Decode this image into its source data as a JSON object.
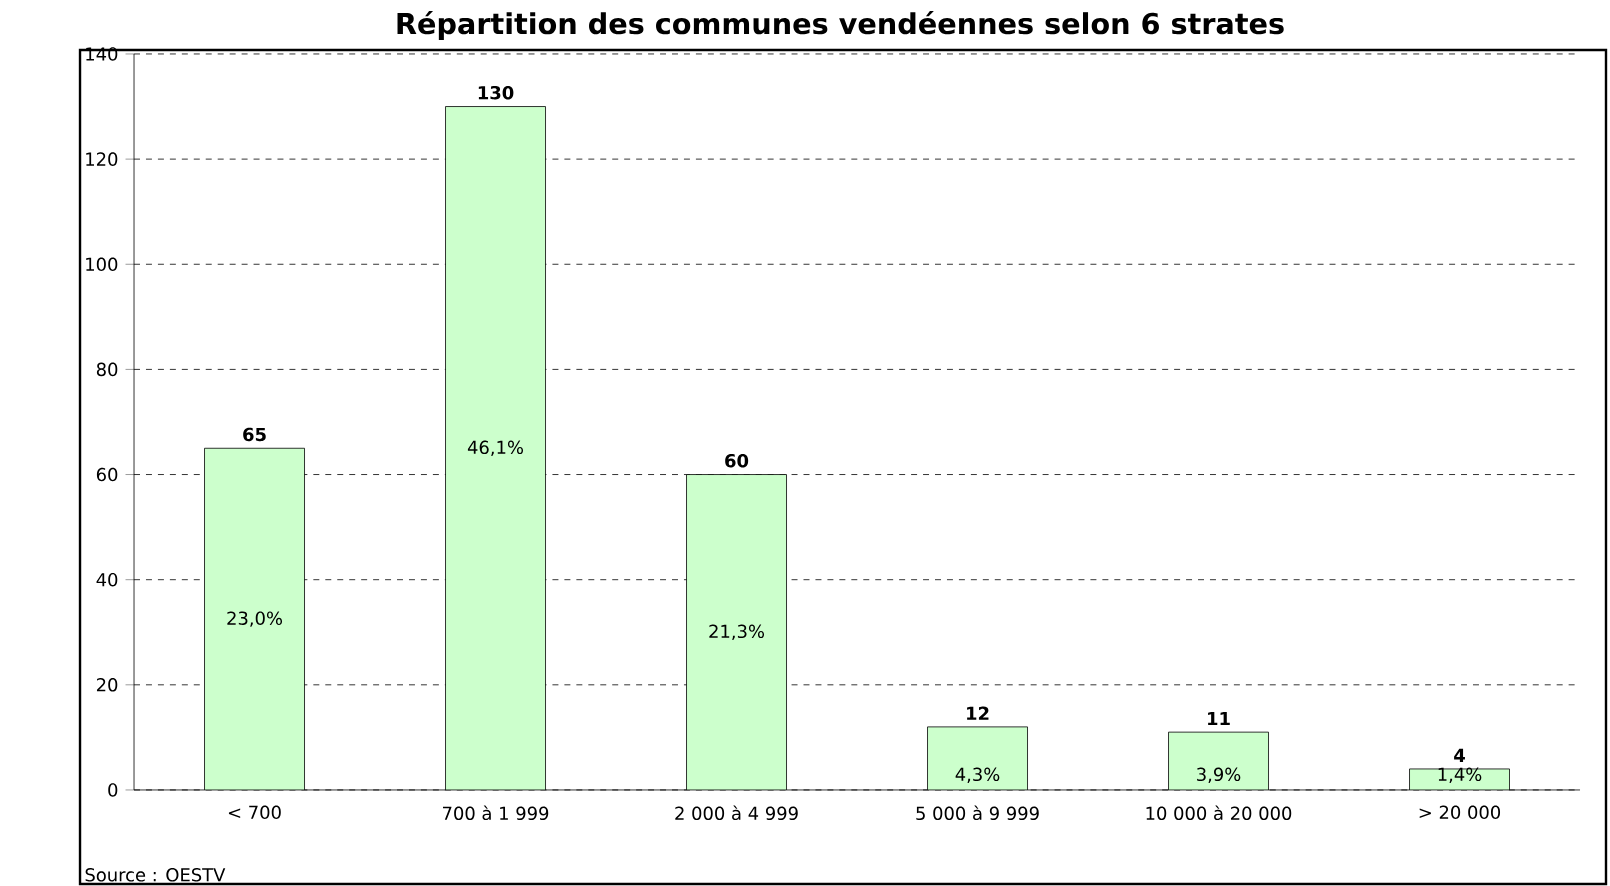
{
  "chart_data": {
    "type": "bar",
    "title": "Répartition des communes vendéennes selon 6 strates",
    "categories": [
      "< 700",
      "700 à 1 999",
      "2 000 à 4 999",
      "5 000 à 9 999",
      "10 000 à 20 000",
      "> 20 000"
    ],
    "values": [
      65,
      130,
      60,
      12,
      11,
      4
    ],
    "color": "#ccffcc",
    "data_labels": true,
    "ylim": [
      0,
      140
    ],
    "yticks": [
      0,
      20,
      40,
      60,
      80,
      100,
      120,
      140
    ],
    "grid": "y",
    "annotations": [
      "23,0%",
      "46,1%",
      "21,3%",
      "4,3%",
      "3,9%",
      "1,4%",
      "Source : OESTV"
    ]
  }
}
